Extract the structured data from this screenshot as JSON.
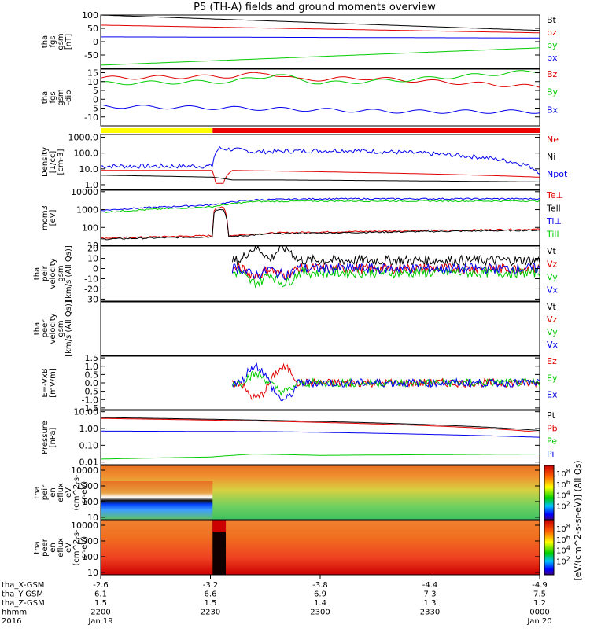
{
  "title": "P5 (TH-A) fields and ground moments overview",
  "year": "2016",
  "colors": {
    "black": "#000000",
    "red": "#e00000",
    "green": "#00cc00",
    "blue": "#0000ee",
    "yellow": "#ffff00",
    "barred": "#ee0000"
  },
  "chart_data": [
    {
      "id": "p1",
      "type": "line",
      "ylabel": [
        "tha",
        "fgs",
        "gsm",
        "[nT]"
      ],
      "ylim": [
        -100,
        100
      ],
      "ticks": [
        100,
        50,
        0,
        -50
      ],
      "legend": [
        {
          "name": "Bt",
          "color": "black"
        },
        {
          "name": "bz",
          "color": "red"
        },
        {
          "name": "by",
          "color": "green"
        },
        {
          "name": "bx",
          "color": "blue"
        }
      ],
      "series": [
        {
          "name": "Bt",
          "color": "black",
          "x": [
            0,
            1
          ],
          "y": [
            100,
            42
          ]
        },
        {
          "name": "bz",
          "color": "red",
          "x": [
            0,
            1
          ],
          "y": [
            62,
            33
          ]
        },
        {
          "name": "by",
          "color": "green",
          "x": [
            0,
            1
          ],
          "y": [
            -88,
            -23
          ]
        },
        {
          "name": "bx",
          "color": "blue",
          "x": [
            0,
            1
          ],
          "y": [
            18,
            14
          ]
        }
      ]
    },
    {
      "id": "p2",
      "type": "line",
      "ylabel": [
        "tha",
        "fgs",
        "gsm",
        "-dip"
      ],
      "ylim": [
        -15,
        17
      ],
      "ticks": [
        15,
        10,
        5,
        0,
        -5,
        -10
      ],
      "legend": [
        {
          "name": "Bz",
          "color": "red"
        },
        {
          "name": "By",
          "color": "green"
        },
        {
          "name": "Bx",
          "color": "blue"
        }
      ],
      "series": [
        {
          "name": "Bz",
          "color": "red",
          "x": [
            0,
            0.3,
            0.38,
            0.45,
            0.6,
            1
          ],
          "y": [
            12,
            13,
            15,
            11,
            12,
            7
          ]
        },
        {
          "name": "By",
          "color": "green",
          "x": [
            0,
            0.3,
            0.4,
            0.5,
            0.7,
            1
          ],
          "y": [
            9,
            10,
            14,
            9,
            11,
            16
          ]
        },
        {
          "name": "Bx",
          "color": "blue",
          "x": [
            0,
            0.3,
            0.5,
            0.7,
            1
          ],
          "y": [
            -4,
            -5,
            -6,
            -7,
            -7
          ]
        }
      ]
    },
    {
      "id": "p3",
      "type": "line",
      "log": true,
      "ylabel": [
        "Density",
        "[1/cc]",
        "[cm-3]"
      ],
      "ylim": [
        0.5,
        1500
      ],
      "ticks": [
        1000,
        100,
        10,
        1
      ],
      "ticklabels": [
        "1000.0",
        "100.0",
        "10.0",
        "1.0"
      ],
      "legend": [
        {
          "name": "Ne",
          "color": "red"
        },
        {
          "name": "Ni",
          "color": "black"
        },
        {
          "name": "Npot",
          "color": "blue"
        }
      ],
      "series": [
        {
          "name": "Ne",
          "color": "red",
          "x": [
            0,
            0.255,
            0.26,
            0.28,
            0.3,
            1
          ],
          "y": [
            8,
            8,
            1.2,
            1.2,
            8,
            3
          ]
        },
        {
          "name": "Ni",
          "color": "black",
          "x": [
            0,
            0.255,
            0.3,
            0.4,
            1
          ],
          "y": [
            4,
            3,
            2,
            2,
            1.5
          ]
        },
        {
          "name": "Npot",
          "color": "blue",
          "x": [
            0,
            0.255,
            0.27,
            0.35,
            0.55,
            0.85,
            1
          ],
          "y": [
            15,
            15,
            200,
            120,
            150,
            60,
            6
          ]
        }
      ]
    },
    {
      "id": "p4",
      "type": "line",
      "log": true,
      "ylabel": [
        "mom3",
        "[eV]"
      ],
      "ylim": [
        10,
        12000
      ],
      "ticks": [
        10000,
        1000,
        100,
        10
      ],
      "legend": [
        {
          "name": "Te⊥",
          "color": "red"
        },
        {
          "name": "Tell",
          "color": "black"
        },
        {
          "name": "Ti⊥",
          "color": "blue"
        },
        {
          "name": "Till",
          "color": "green"
        }
      ],
      "series": [
        {
          "name": "Te⊥",
          "color": "red",
          "x": [
            0,
            0.255,
            0.26,
            0.28,
            0.29,
            0.4,
            1
          ],
          "y": [
            25,
            35,
            1300,
            1300,
            35,
            50,
            80
          ]
        },
        {
          "name": "Tell",
          "color": "black",
          "x": [
            0,
            0.255,
            0.26,
            0.28,
            0.29,
            0.4,
            1
          ],
          "y": [
            22,
            30,
            1000,
            1000,
            30,
            45,
            70
          ]
        },
        {
          "name": "Ti⊥",
          "color": "blue",
          "x": [
            0,
            0.25,
            0.35,
            0.5,
            1
          ],
          "y": [
            900,
            1800,
            3500,
            4000,
            4000
          ]
        },
        {
          "name": "Till",
          "color": "green",
          "x": [
            0,
            0.25,
            0.35,
            0.5,
            1
          ],
          "y": [
            700,
            1400,
            2800,
            3000,
            3000
          ]
        }
      ]
    },
    {
      "id": "p5",
      "type": "line",
      "ylabel": [
        "tha",
        "peir",
        "velocity",
        "gsm",
        "[km/s (All Qs)]"
      ],
      "ylim": [
        -32,
        22
      ],
      "ticks": [
        20,
        10,
        0,
        -10,
        -20,
        -30
      ],
      "legend": [
        {
          "name": "Vt",
          "color": "black"
        },
        {
          "name": "Vz",
          "color": "red"
        },
        {
          "name": "Vy",
          "color": "green"
        },
        {
          "name": "Vx",
          "color": "blue"
        }
      ],
      "xstart": 0.3,
      "series": [
        {
          "name": "Vt",
          "color": "black",
          "x": [
            0.3,
            1
          ],
          "y": [
            8,
            8
          ]
        },
        {
          "name": "Vz",
          "color": "red",
          "x": [
            0.3,
            1
          ],
          "y": [
            0,
            0
          ]
        },
        {
          "name": "Vy",
          "color": "green",
          "x": [
            0.3,
            1
          ],
          "y": [
            -4,
            -4
          ]
        },
        {
          "name": "Vx",
          "color": "blue",
          "x": [
            0.3,
            1
          ],
          "y": [
            0,
            0
          ]
        }
      ]
    },
    {
      "id": "p6",
      "type": "line",
      "ylabel": [
        "tha",
        "peer",
        "velocity",
        "gsm",
        "[km/s (All Qs)]"
      ],
      "ylim": [
        -1,
        1
      ],
      "ticks": [],
      "legend": [
        {
          "name": "Vt",
          "color": "black"
        },
        {
          "name": "Vz",
          "color": "red"
        },
        {
          "name": "Vy",
          "color": "green"
        },
        {
          "name": "Vx",
          "color": "blue"
        }
      ],
      "series": []
    },
    {
      "id": "p7",
      "type": "line",
      "ylabel": [
        "E=-VxB",
        "[mV/m]"
      ],
      "ylim": [
        -1.6,
        1.6
      ],
      "ticks": [
        1.5,
        1.0,
        0.5,
        0.0,
        -0.5,
        -1.0,
        -1.5
      ],
      "ticklabels": [
        "1.5",
        "1.0",
        "0.5",
        "0.0",
        "-0.5",
        "-1.0",
        "-1.5"
      ],
      "legend": [
        {
          "name": "Ez",
          "color": "red"
        },
        {
          "name": "Ey",
          "color": "green"
        },
        {
          "name": "Ex",
          "color": "blue"
        }
      ],
      "xstart": 0.3,
      "series": [
        {
          "name": "Ez",
          "color": "red",
          "x": [
            0.3,
            1
          ],
          "y": [
            0,
            0
          ]
        },
        {
          "name": "Ey",
          "color": "green",
          "x": [
            0.3,
            1
          ],
          "y": [
            0,
            0
          ]
        },
        {
          "name": "Ex",
          "color": "blue",
          "x": [
            0.3,
            1
          ],
          "y": [
            0,
            0
          ]
        }
      ]
    },
    {
      "id": "p8",
      "type": "line",
      "log": true,
      "ylabel": [
        "Pressure",
        "[nPa]"
      ],
      "ylim": [
        0.007,
        12
      ],
      "ticks": [
        10,
        1,
        0.1,
        0.01
      ],
      "ticklabels": [
        "10.00",
        "1.00",
        "0.10",
        "0.01"
      ],
      "legend": [
        {
          "name": "Pt",
          "color": "black"
        },
        {
          "name": "Pb",
          "color": "red"
        },
        {
          "name": "Pe",
          "color": "green"
        },
        {
          "name": "Pi",
          "color": "blue"
        }
      ],
      "series": [
        {
          "name": "Pt",
          "color": "black",
          "x": [
            0,
            1
          ],
          "y": [
            4.5,
            0.75
          ]
        },
        {
          "name": "Pb",
          "color": "red",
          "x": [
            0,
            1
          ],
          "y": [
            4,
            0.6
          ]
        },
        {
          "name": "Pi",
          "color": "blue",
          "x": [
            0,
            0.4,
            1
          ],
          "y": [
            0.7,
            0.65,
            0.3
          ]
        },
        {
          "name": "Pe",
          "color": "green",
          "x": [
            0,
            0.25,
            0.35,
            0.5,
            1
          ],
          "y": [
            0.015,
            0.02,
            0.03,
            0.025,
            0.03
          ]
        }
      ]
    },
    {
      "id": "p9",
      "type": "heatmap",
      "log": true,
      "ylabel": [
        "tha",
        "peir",
        "en",
        "eflux",
        "eV",
        "(cm^2-s-",
        "sr-eV)"
      ],
      "ylim": [
        7,
        20000
      ],
      "ticks": [
        10000,
        1000,
        100,
        10
      ],
      "ticklabels": [
        "10000",
        "1000",
        "100",
        "10"
      ]
    },
    {
      "id": "p10",
      "type": "heatmap",
      "log": true,
      "ylabel": [
        "tha",
        "peer",
        "en",
        "eflux",
        "eV",
        "(cm^2-s-",
        "sr-eV)"
      ],
      "ylim": [
        7,
        20000
      ],
      "ticks": [
        10000,
        1000,
        100,
        10
      ],
      "ticklabels": [
        "10000",
        "1000",
        "100",
        "10"
      ]
    }
  ],
  "status_bar": [
    {
      "from": 0,
      "to": 0.255,
      "color": "yellow"
    },
    {
      "from": 0.255,
      "to": 1,
      "color": "barred"
    }
  ],
  "colorbars": [
    {
      "ticks": [
        "10^8",
        "10^6",
        "10^4",
        "10^2"
      ]
    },
    {
      "ticks": [
        "10^8",
        "10^6",
        "10^4",
        "10^2"
      ]
    }
  ],
  "colorbar_label": "[eV/(cm^2-s-sr-eV)] (All Qs)",
  "x_axis": {
    "row_labels": [
      "tha_X-GSM",
      "tha_Y-GSM",
      "tha_Z-GSM",
      "hhmm",
      "2016"
    ],
    "ticks": [
      {
        "frac": 0,
        "vals": [
          "-2.6",
          "6.1",
          "1.5",
          "2200",
          "Jan 19"
        ]
      },
      {
        "frac": 0.25,
        "vals": [
          "-3.2",
          "6.6",
          "1.5",
          "2230",
          ""
        ]
      },
      {
        "frac": 0.5,
        "vals": [
          "-3.8",
          "6.9",
          "1.4",
          "2300",
          ""
        ]
      },
      {
        "frac": 0.75,
        "vals": [
          "-4.4",
          "7.3",
          "1.3",
          "2330",
          ""
        ]
      },
      {
        "frac": 1,
        "vals": [
          "-4.9",
          "7.5",
          "1.2",
          "0000",
          "Jan 20"
        ]
      }
    ]
  }
}
